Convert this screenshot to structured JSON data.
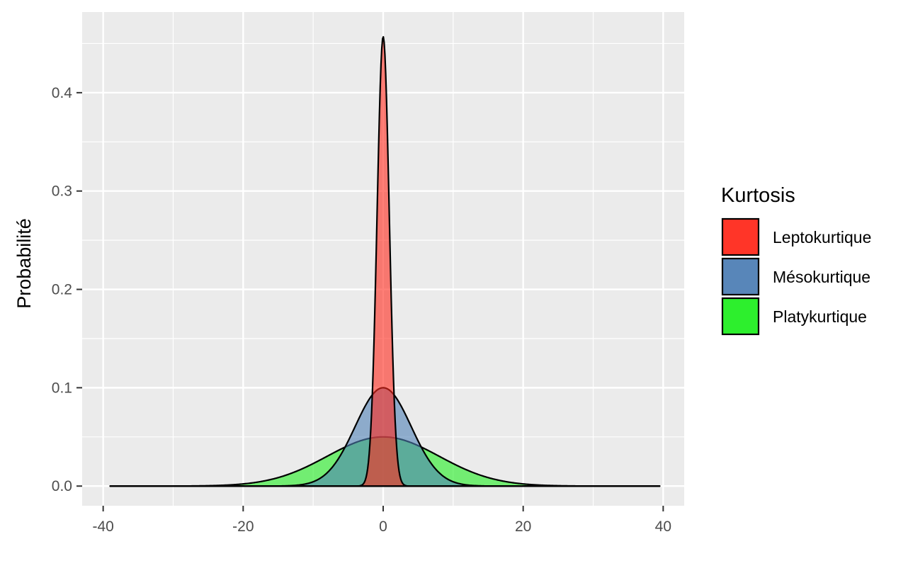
{
  "chart_data": {
    "type": "area",
    "xlabel": "",
    "ylabel": "Probabilité",
    "xlim": [
      -43,
      43
    ],
    "ylim": [
      -0.02,
      0.482
    ],
    "x_ticks": [
      -40,
      -20,
      0,
      20,
      40
    ],
    "x_tick_labels": [
      "-40",
      "-20",
      "0",
      "20",
      "40"
    ],
    "y_ticks": [
      0.0,
      0.1,
      0.2,
      0.3,
      0.4
    ],
    "y_tick_labels": [
      "0.0",
      "0.1",
      "0.2",
      "0.3",
      "0.4"
    ],
    "grid": true,
    "x_range_drawn": [
      -39,
      39.5
    ],
    "legend": {
      "title": "Kurtosis",
      "position": "right"
    },
    "series": [
      {
        "name": "Leptokurtique",
        "fill": "#ff2a1c",
        "sd": 0.87,
        "peak": 0.457
      },
      {
        "name": "Mésokurtique",
        "fill": "#4f80b5",
        "sd": 4.0,
        "peak": 0.1
      },
      {
        "name": "Platykurtique",
        "fill": "#22ee22",
        "sd": 8.0,
        "peak": 0.05
      }
    ],
    "colors": {
      "panel": "#ebebeb",
      "grid": "#ffffff",
      "outline": "#000000"
    }
  }
}
